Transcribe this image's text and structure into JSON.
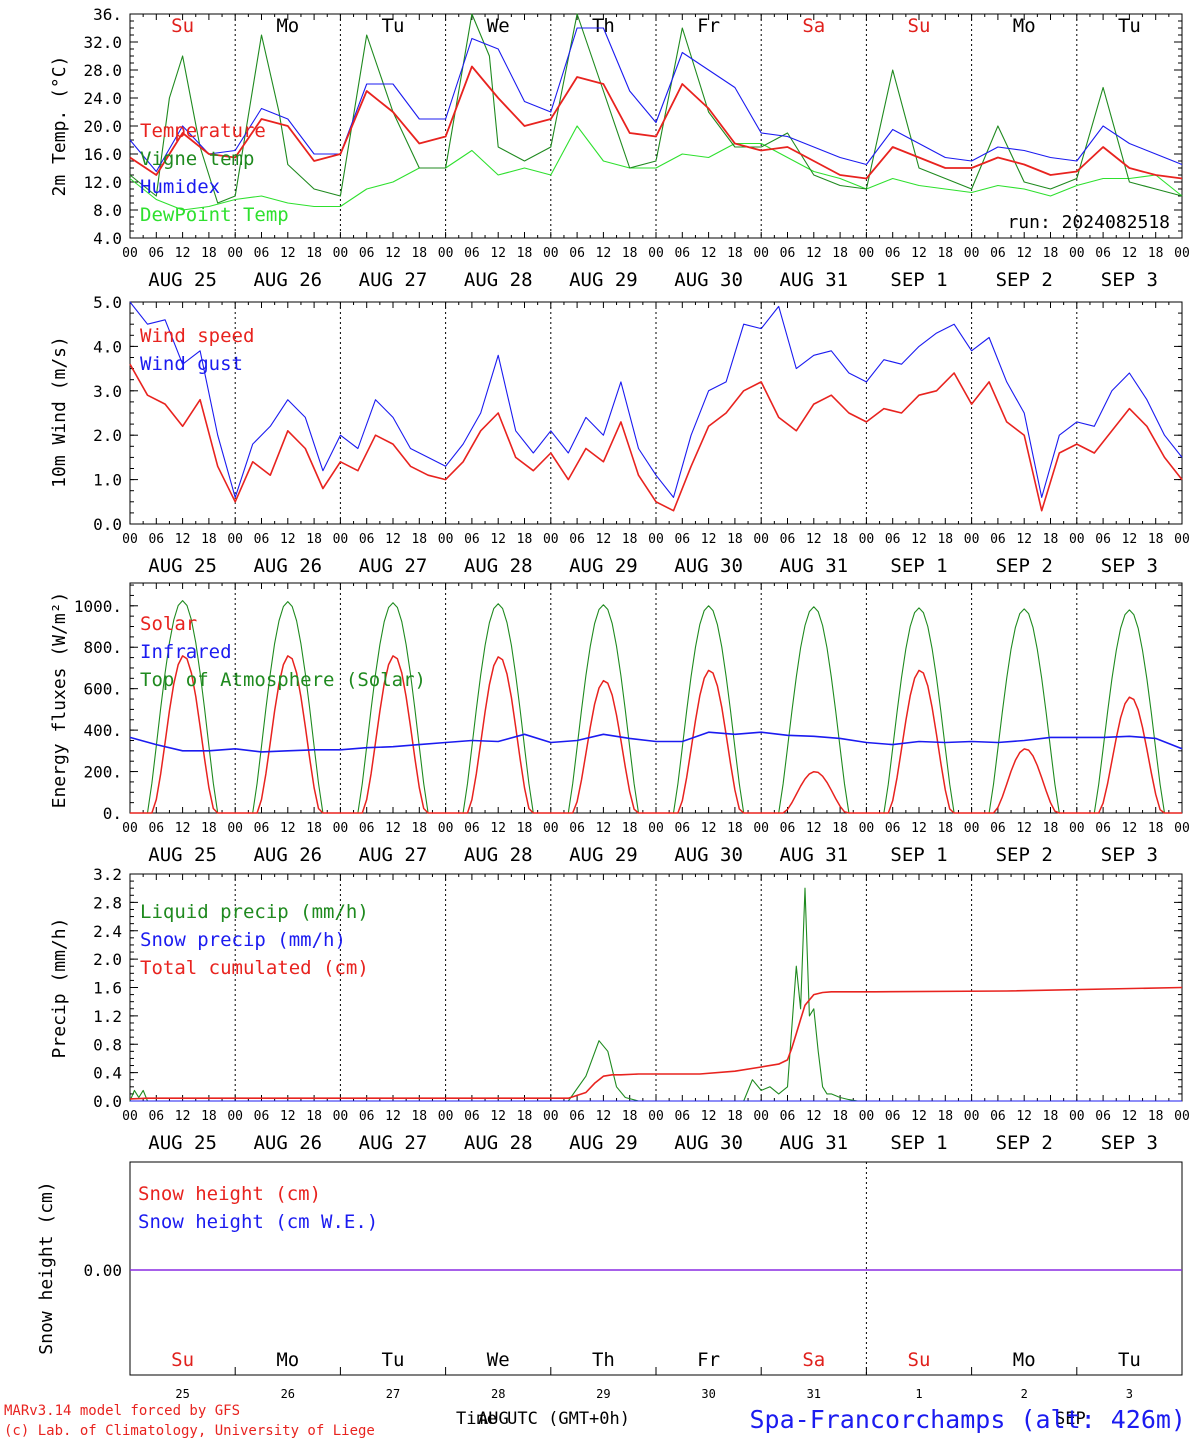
{
  "run_label": "run: 2024082518",
  "footer": {
    "model_credit": "MARv3.14 model forced by GFS",
    "lab_credit": "(c) Lab. of Climatology, University of Liege",
    "time_label": "Time UTC (GMT+0h)",
    "location": "Spa-Francorchamps (alt: 426m)",
    "overlap_month_left": "AUG",
    "overlap_month_right": "SEP"
  },
  "days": {
    "weekday_labels": [
      "Su",
      "Mo",
      "Tu",
      "We",
      "Th",
      "Fr",
      "Sa",
      "Su",
      "Mo",
      "Tu"
    ],
    "weekday_colors": [
      "#e0201c",
      "#000000",
      "#000000",
      "#000000",
      "#000000",
      "#000000",
      "#e0201c",
      "#e0201c",
      "#000000",
      "#000000"
    ],
    "date_labels": [
      "AUG 25",
      "AUG 26",
      "AUG 27",
      "AUG 28",
      "AUG 29",
      "AUG 30",
      "AUG 31",
      "SEP  1",
      "SEP  2",
      "SEP  3"
    ],
    "day_numbers": [
      "25",
      "26",
      "27",
      "28",
      "29",
      "30",
      "31",
      "1",
      "2",
      "3"
    ],
    "hour_ticks": [
      "00",
      "06",
      "12",
      "18"
    ],
    "final_hour": "00"
  },
  "colors": {
    "red": "#e8231f",
    "green": "#1f8a1f",
    "blue": "#1b1bf0",
    "light_green": "#2ee02e",
    "purple": "#8a2be2"
  },
  "chart_data": [
    {
      "type": "line",
      "ylabel": "2m Temp. (°C)",
      "yticks": [
        "36.",
        "32.0",
        "28.0",
        "24.0",
        "20.0",
        "16.0",
        "12.0",
        "8.0",
        "4.0"
      ],
      "ylim": [
        4,
        36
      ],
      "x_unit": "hours since Aug 25 00 UTC",
      "series": [
        {
          "name": "Temperature",
          "color": "red",
          "x": [
            0,
            6,
            12,
            18,
            24,
            30,
            36,
            42,
            48,
            54,
            60,
            66,
            72,
            78,
            84,
            90,
            96,
            102,
            108,
            114,
            120,
            126,
            132,
            138,
            144,
            150,
            156,
            162,
            168,
            174,
            180,
            186,
            192,
            198,
            204,
            210,
            216,
            222,
            228,
            234,
            240
          ],
          "y": [
            15.5,
            13,
            19,
            16,
            15.5,
            21,
            20,
            15,
            16,
            25,
            22,
            17.5,
            18.5,
            28.5,
            24,
            20,
            21,
            27,
            26,
            19,
            18.5,
            26,
            22.5,
            17.5,
            16.5,
            17,
            15,
            13,
            12.5,
            17,
            15.5,
            14,
            14,
            15.5,
            14.5,
            13,
            13.5,
            17,
            14,
            13,
            12.5
          ]
        },
        {
          "name": "Vigne temp",
          "color": "green",
          "x": [
            0,
            6,
            9,
            12,
            16,
            20,
            24,
            30,
            34,
            36,
            42,
            48,
            54,
            60,
            66,
            72,
            78,
            82,
            84,
            90,
            96,
            102,
            108,
            114,
            120,
            126,
            132,
            138,
            144,
            150,
            156,
            162,
            168,
            174,
            180,
            186,
            192,
            198,
            204,
            210,
            216,
            222,
            228,
            234,
            240
          ],
          "y": [
            13,
            10,
            24,
            30,
            17,
            9,
            10,
            33,
            22,
            14.5,
            11,
            10,
            33,
            22,
            14,
            14,
            36,
            30,
            17,
            15,
            17,
            36,
            25,
            14,
            15,
            34,
            22,
            17,
            17,
            19,
            13,
            11.5,
            11,
            28,
            14,
            12.5,
            11,
            20,
            12,
            11,
            12.5,
            25.5,
            12,
            11,
            10
          ]
        },
        {
          "name": "Humidex",
          "color": "blue",
          "x": [
            0,
            6,
            12,
            18,
            24,
            30,
            36,
            42,
            48,
            54,
            60,
            66,
            72,
            78,
            84,
            90,
            96,
            102,
            108,
            114,
            120,
            126,
            132,
            138,
            144,
            150,
            156,
            162,
            168,
            174,
            180,
            186,
            192,
            198,
            204,
            210,
            216,
            222,
            228,
            234,
            240
          ],
          "y": [
            18,
            13.5,
            20,
            16,
            16.5,
            22.5,
            21,
            16,
            16,
            26,
            26,
            21,
            21,
            32.5,
            31,
            23.5,
            22,
            34,
            34,
            25,
            20.5,
            30.5,
            28,
            25.5,
            19,
            18.5,
            17,
            15.5,
            14.5,
            19.5,
            17.5,
            15.5,
            15,
            17,
            16.5,
            15.5,
            15,
            20,
            17.5,
            16,
            14.5
          ]
        },
        {
          "name": "DewPoint Temp",
          "color": "light_green",
          "x": [
            0,
            6,
            12,
            18,
            24,
            30,
            36,
            42,
            48,
            54,
            60,
            66,
            72,
            78,
            84,
            90,
            96,
            102,
            108,
            114,
            120,
            126,
            132,
            138,
            144,
            150,
            156,
            162,
            168,
            174,
            180,
            186,
            192,
            198,
            204,
            210,
            216,
            222,
            228,
            234,
            240
          ],
          "y": [
            12.5,
            9.5,
            8,
            8.5,
            9.5,
            10,
            9,
            8.5,
            8.5,
            11,
            12,
            14,
            14,
            16.5,
            13,
            14,
            13,
            20,
            15,
            14,
            14,
            16,
            15.5,
            17.5,
            17.5,
            15.5,
            13.5,
            12.5,
            11,
            12.5,
            11.5,
            11,
            10.5,
            11.5,
            11,
            10,
            11.5,
            12.5,
            12.5,
            13,
            10
          ]
        }
      ],
      "legend": [
        "Temperature",
        "Vigne temp",
        "Humidex",
        "DewPoint Temp"
      ]
    },
    {
      "type": "line",
      "ylabel": "10m Wind (m/s)",
      "yticks": [
        "5.0",
        "4.0",
        "3.0",
        "2.0",
        "1.0",
        "0.0"
      ],
      "ylim": [
        0,
        5
      ],
      "x_unit": "hours since Aug 25 00 UTC",
      "series": [
        {
          "name": "Wind speed",
          "color": "red",
          "x": [
            0,
            4,
            8,
            12,
            16,
            20,
            24,
            28,
            32,
            36,
            40,
            44,
            48,
            52,
            56,
            60,
            64,
            68,
            72,
            76,
            80,
            84,
            88,
            92,
            96,
            100,
            104,
            108,
            112,
            116,
            120,
            124,
            128,
            132,
            136,
            140,
            144,
            148,
            152,
            156,
            160,
            164,
            168,
            172,
            176,
            180,
            184,
            188,
            192,
            196,
            200,
            204,
            208,
            212,
            216,
            220,
            224,
            228,
            232,
            236,
            240
          ],
          "y": [
            3.6,
            2.9,
            2.7,
            2.2,
            2.8,
            1.3,
            0.5,
            1.4,
            1.1,
            2.1,
            1.7,
            0.8,
            1.4,
            1.2,
            2.0,
            1.8,
            1.3,
            1.1,
            1.0,
            1.4,
            2.1,
            2.5,
            1.5,
            1.2,
            1.6,
            1.0,
            1.7,
            1.4,
            2.3,
            1.1,
            0.5,
            0.3,
            1.3,
            2.2,
            2.5,
            3.0,
            3.2,
            2.4,
            2.1,
            2.7,
            2.9,
            2.5,
            2.3,
            2.6,
            2.5,
            2.9,
            3.0,
            3.4,
            2.7,
            3.2,
            2.3,
            2.0,
            0.3,
            1.6,
            1.8,
            1.6,
            2.1,
            2.6,
            2.2,
            1.5,
            1.0
          ]
        },
        {
          "name": "Wind gust",
          "color": "blue",
          "x": [
            0,
            4,
            8,
            12,
            16,
            20,
            24,
            28,
            32,
            36,
            40,
            44,
            48,
            52,
            56,
            60,
            64,
            68,
            72,
            76,
            80,
            84,
            88,
            92,
            96,
            100,
            104,
            108,
            112,
            116,
            120,
            124,
            128,
            132,
            136,
            140,
            144,
            148,
            152,
            156,
            160,
            164,
            168,
            172,
            176,
            180,
            184,
            188,
            192,
            196,
            200,
            204,
            208,
            212,
            216,
            220,
            224,
            228,
            232,
            236,
            240
          ],
          "y": [
            5.0,
            4.5,
            4.6,
            3.6,
            3.9,
            2.0,
            0.6,
            1.8,
            2.2,
            2.8,
            2.4,
            1.2,
            2.0,
            1.7,
            2.8,
            2.4,
            1.7,
            1.5,
            1.3,
            1.8,
            2.5,
            3.8,
            2.1,
            1.6,
            2.1,
            1.6,
            2.4,
            2.0,
            3.2,
            1.7,
            1.1,
            0.6,
            2.0,
            3.0,
            3.2,
            4.5,
            4.4,
            4.9,
            3.5,
            3.8,
            3.9,
            3.4,
            3.2,
            3.7,
            3.6,
            4.0,
            4.3,
            4.5,
            3.9,
            4.2,
            3.2,
            2.5,
            0.6,
            2.0,
            2.3,
            2.2,
            3.0,
            3.4,
            2.8,
            2.0,
            1.5
          ]
        }
      ],
      "legend": [
        "Wind speed",
        "Wind gust"
      ]
    },
    {
      "type": "line",
      "ylabel": "Energy fluxes (W/m²)",
      "yticks": [
        "1000.",
        "800.",
        "600.",
        "400.",
        "200.",
        "0."
      ],
      "ylim": [
        0,
        1100
      ],
      "x_unit": "hours since Aug 25 00 UTC",
      "toa_peaks": [
        1025,
        1020,
        1015,
        1010,
        1005,
        1000,
        995,
        990,
        985,
        980
      ],
      "solar_peaks": [
        760,
        760,
        760,
        755,
        640,
        690,
        200,
        690,
        310,
        560
      ],
      "series": [
        {
          "name": "Solar",
          "color": "red"
        },
        {
          "name": "Infrared",
          "color": "blue",
          "x": [
            0,
            6,
            12,
            18,
            24,
            30,
            36,
            42,
            48,
            54,
            60,
            66,
            72,
            78,
            84,
            90,
            96,
            102,
            108,
            114,
            120,
            126,
            132,
            138,
            144,
            150,
            156,
            162,
            168,
            174,
            180,
            186,
            192,
            198,
            204,
            210,
            216,
            222,
            228,
            234,
            240
          ],
          "y": [
            365,
            330,
            300,
            300,
            310,
            295,
            300,
            305,
            305,
            315,
            320,
            330,
            340,
            350,
            345,
            380,
            340,
            350,
            380,
            360,
            345,
            345,
            390,
            380,
            390,
            375,
            370,
            360,
            340,
            330,
            345,
            340,
            345,
            340,
            350,
            365,
            365,
            365,
            370,
            360,
            310
          ]
        },
        {
          "name": "Top of Atmosphere (Solar)",
          "color": "green"
        }
      ],
      "legend": [
        "Solar",
        "Infrared",
        "Top of Atmosphere (Solar)"
      ]
    },
    {
      "type": "line",
      "ylabel": "Precip (mm/h)",
      "yticks": [
        "3.2",
        "2.8",
        "2.4",
        "2.0",
        "1.6",
        "1.2",
        "0.8",
        "0.4",
        "0.0"
      ],
      "ylim": [
        0,
        3.2
      ],
      "x_unit": "hours since Aug 25 00 UTC",
      "series": [
        {
          "name": "Liquid precip (mm/h)",
          "color": "green",
          "x": [
            0,
            1,
            2,
            3,
            4,
            5,
            8,
            100,
            104,
            107,
            109,
            111,
            113,
            116,
            118,
            120,
            140,
            142,
            144,
            146,
            148,
            150,
            152,
            153,
            154,
            155,
            156,
            157,
            158,
            159,
            160,
            162,
            164,
            166,
            170,
            240
          ],
          "y": [
            0,
            0.15,
            0.05,
            0.15,
            0,
            0,
            0,
            0,
            0.35,
            0.85,
            0.7,
            0.2,
            0.05,
            0,
            0,
            0,
            0,
            0.3,
            0.15,
            0.2,
            0.1,
            0.2,
            1.9,
            1.3,
            3.0,
            1.2,
            1.3,
            0.7,
            0.2,
            0.1,
            0.1,
            0.05,
            0.02,
            0,
            0,
            0
          ]
        },
        {
          "name": "Snow precip (mm/h)",
          "color": "blue",
          "x": [
            0,
            240
          ],
          "y": [
            0,
            0
          ]
        },
        {
          "name": "Total cumulated (cm)",
          "color": "red",
          "x": [
            0,
            4,
            100,
            104,
            106,
            108,
            110,
            112,
            116,
            120,
            130,
            138,
            144,
            148,
            150,
            151,
            152,
            153,
            154,
            156,
            158,
            160,
            170,
            200,
            240
          ],
          "y": [
            0.03,
            0.04,
            0.04,
            0.12,
            0.25,
            0.35,
            0.37,
            0.37,
            0.38,
            0.38,
            0.38,
            0.42,
            0.48,
            0.52,
            0.58,
            0.75,
            0.95,
            1.15,
            1.35,
            1.5,
            1.53,
            1.54,
            1.54,
            1.55,
            1.6
          ]
        }
      ],
      "legend": [
        "Liquid precip (mm/h)",
        "Snow precip (mm/h)",
        "Total cumulated (cm)"
      ]
    },
    {
      "type": "line",
      "ylabel": "Snow height (cm)",
      "yticks": [
        "0.00"
      ],
      "x_unit": "hours since Aug 25 00 UTC",
      "series": [
        {
          "name": "Snow height (cm)",
          "color": "red",
          "x": [
            0,
            240
          ],
          "y": [
            0,
            0
          ]
        },
        {
          "name": "Snow height (cm W.E.)",
          "color": "blue",
          "x": [
            0,
            240
          ],
          "y": [
            0,
            0
          ]
        }
      ],
      "legend": [
        "Snow height (cm)",
        "Snow height (cm W.E.)"
      ]
    }
  ]
}
